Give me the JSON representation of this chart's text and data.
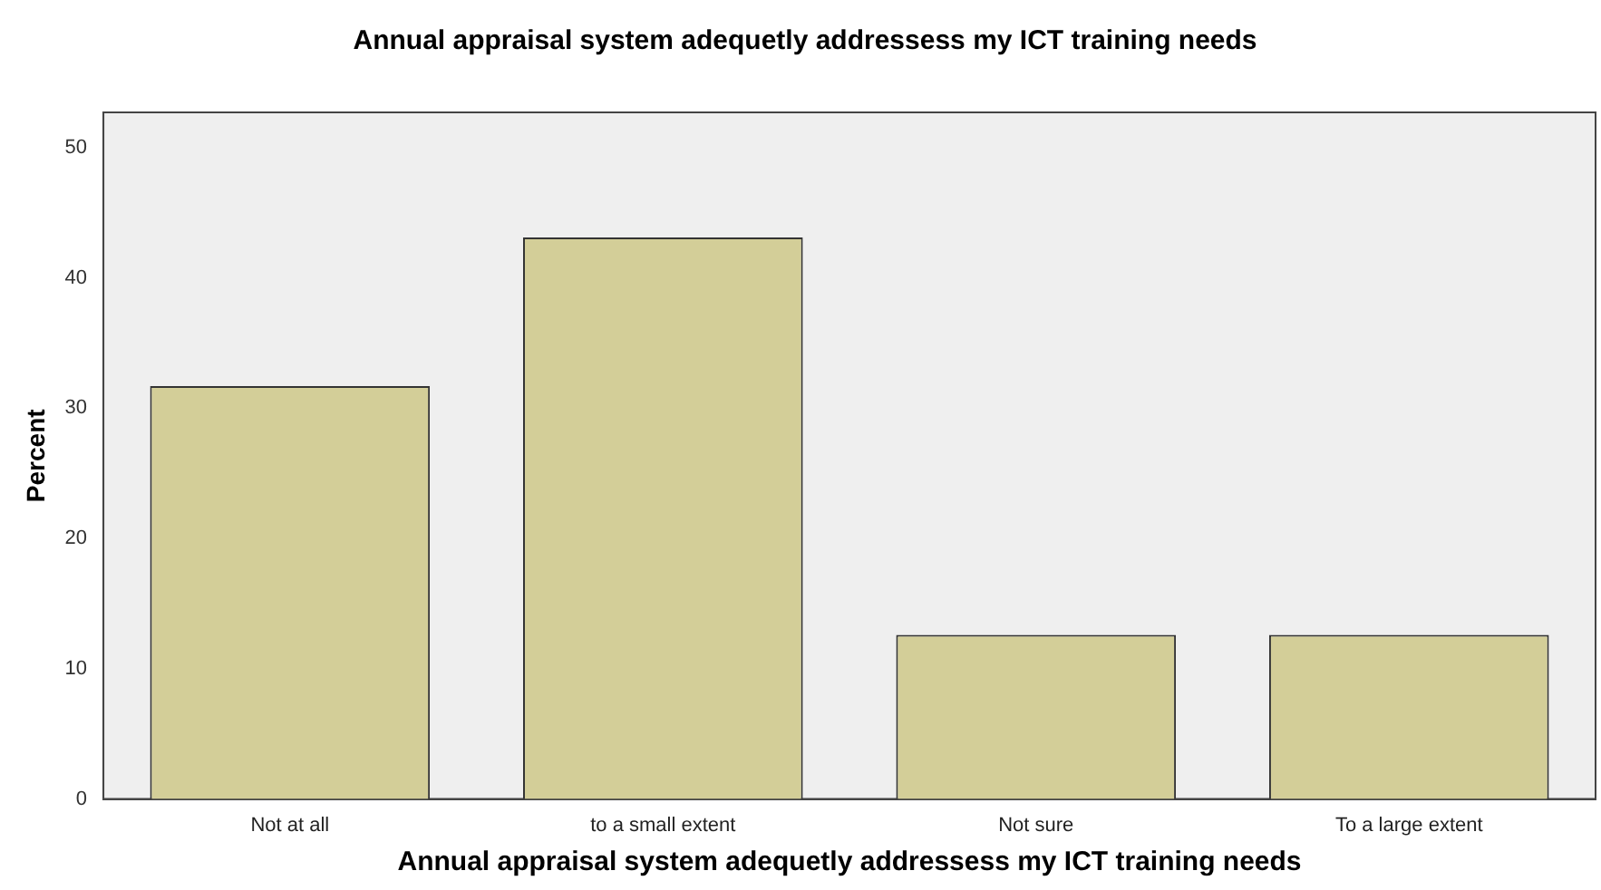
{
  "chart_data": {
    "type": "bar",
    "title": "Annual appraisal system adequetly addressess my ICT training needs",
    "xlabel": "Annual appraisal system adequetly addressess my ICT training needs",
    "ylabel": "Percent",
    "categories": [
      "Not at all",
      "to a small extent",
      "Not sure",
      "To a large extent"
    ],
    "values": [
      31.7,
      43.1,
      12.6,
      12.6
    ],
    "color": "#d3ce98",
    "ylim": [
      0,
      52.7
    ],
    "yticks": [
      0,
      10,
      20,
      30,
      40,
      50
    ],
    "grid": false,
    "legend": false
  }
}
